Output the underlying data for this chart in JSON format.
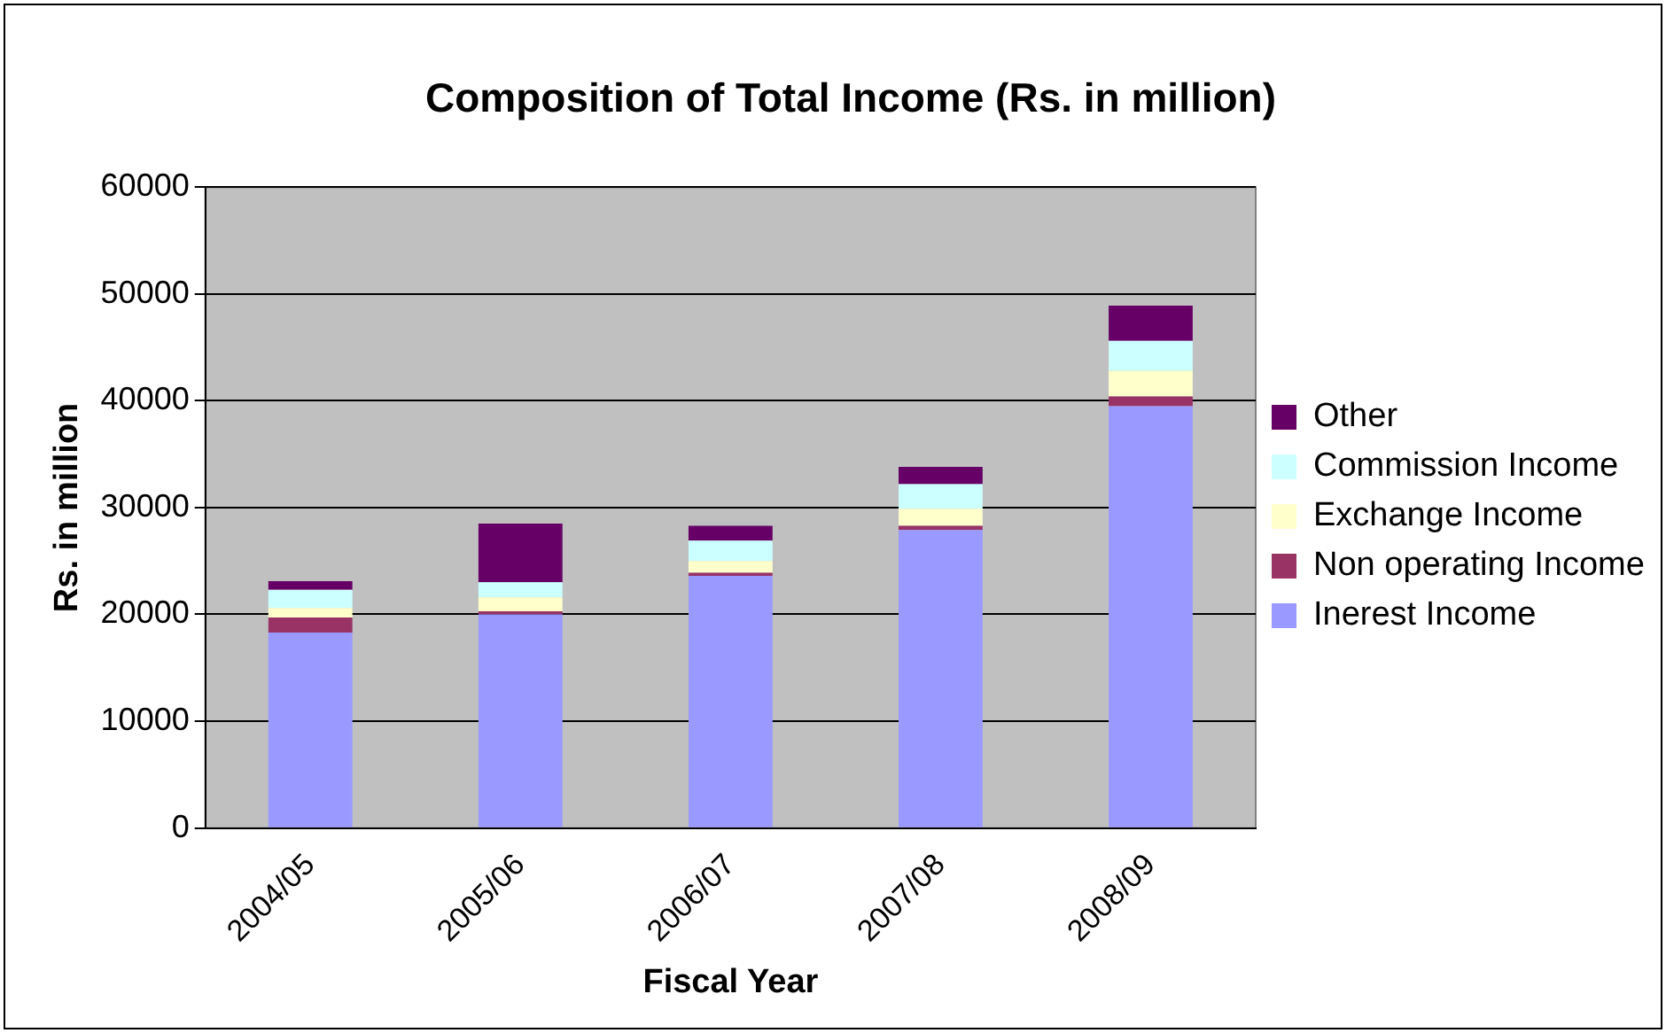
{
  "chart_data": {
    "type": "bar",
    "title": "Composition of Total Income (Rs. in million)",
    "xlabel": "Fiscal Year",
    "ylabel": "Rs. in million",
    "categories": [
      "2004/05",
      "2005/06",
      "2006/07",
      "2007/08",
      "2008/09"
    ],
    "stacked": true,
    "ylim": [
      0,
      60000
    ],
    "yticks": [
      0,
      10000,
      20000,
      30000,
      40000,
      50000,
      60000
    ],
    "grid": "y",
    "legend": "right",
    "series": [
      {
        "name": "Inerest Income",
        "color": "#9999ff",
        "values": [
          18300,
          20000,
          23600,
          27900,
          39500
        ]
      },
      {
        "name": "Non operating Income",
        "color": "#993366",
        "values": [
          1400,
          300,
          300,
          400,
          900
        ]
      },
      {
        "name": "Exchange Income",
        "color": "#ffffcc",
        "values": [
          900,
          1300,
          1100,
          1600,
          2400
        ]
      },
      {
        "name": "Commission Income",
        "color": "#ccffff",
        "values": [
          1700,
          1400,
          1900,
          2300,
          2800
        ]
      },
      {
        "name": "Other",
        "color": "#660066",
        "values": [
          800,
          5500,
          1400,
          1600,
          3300
        ]
      }
    ]
  }
}
